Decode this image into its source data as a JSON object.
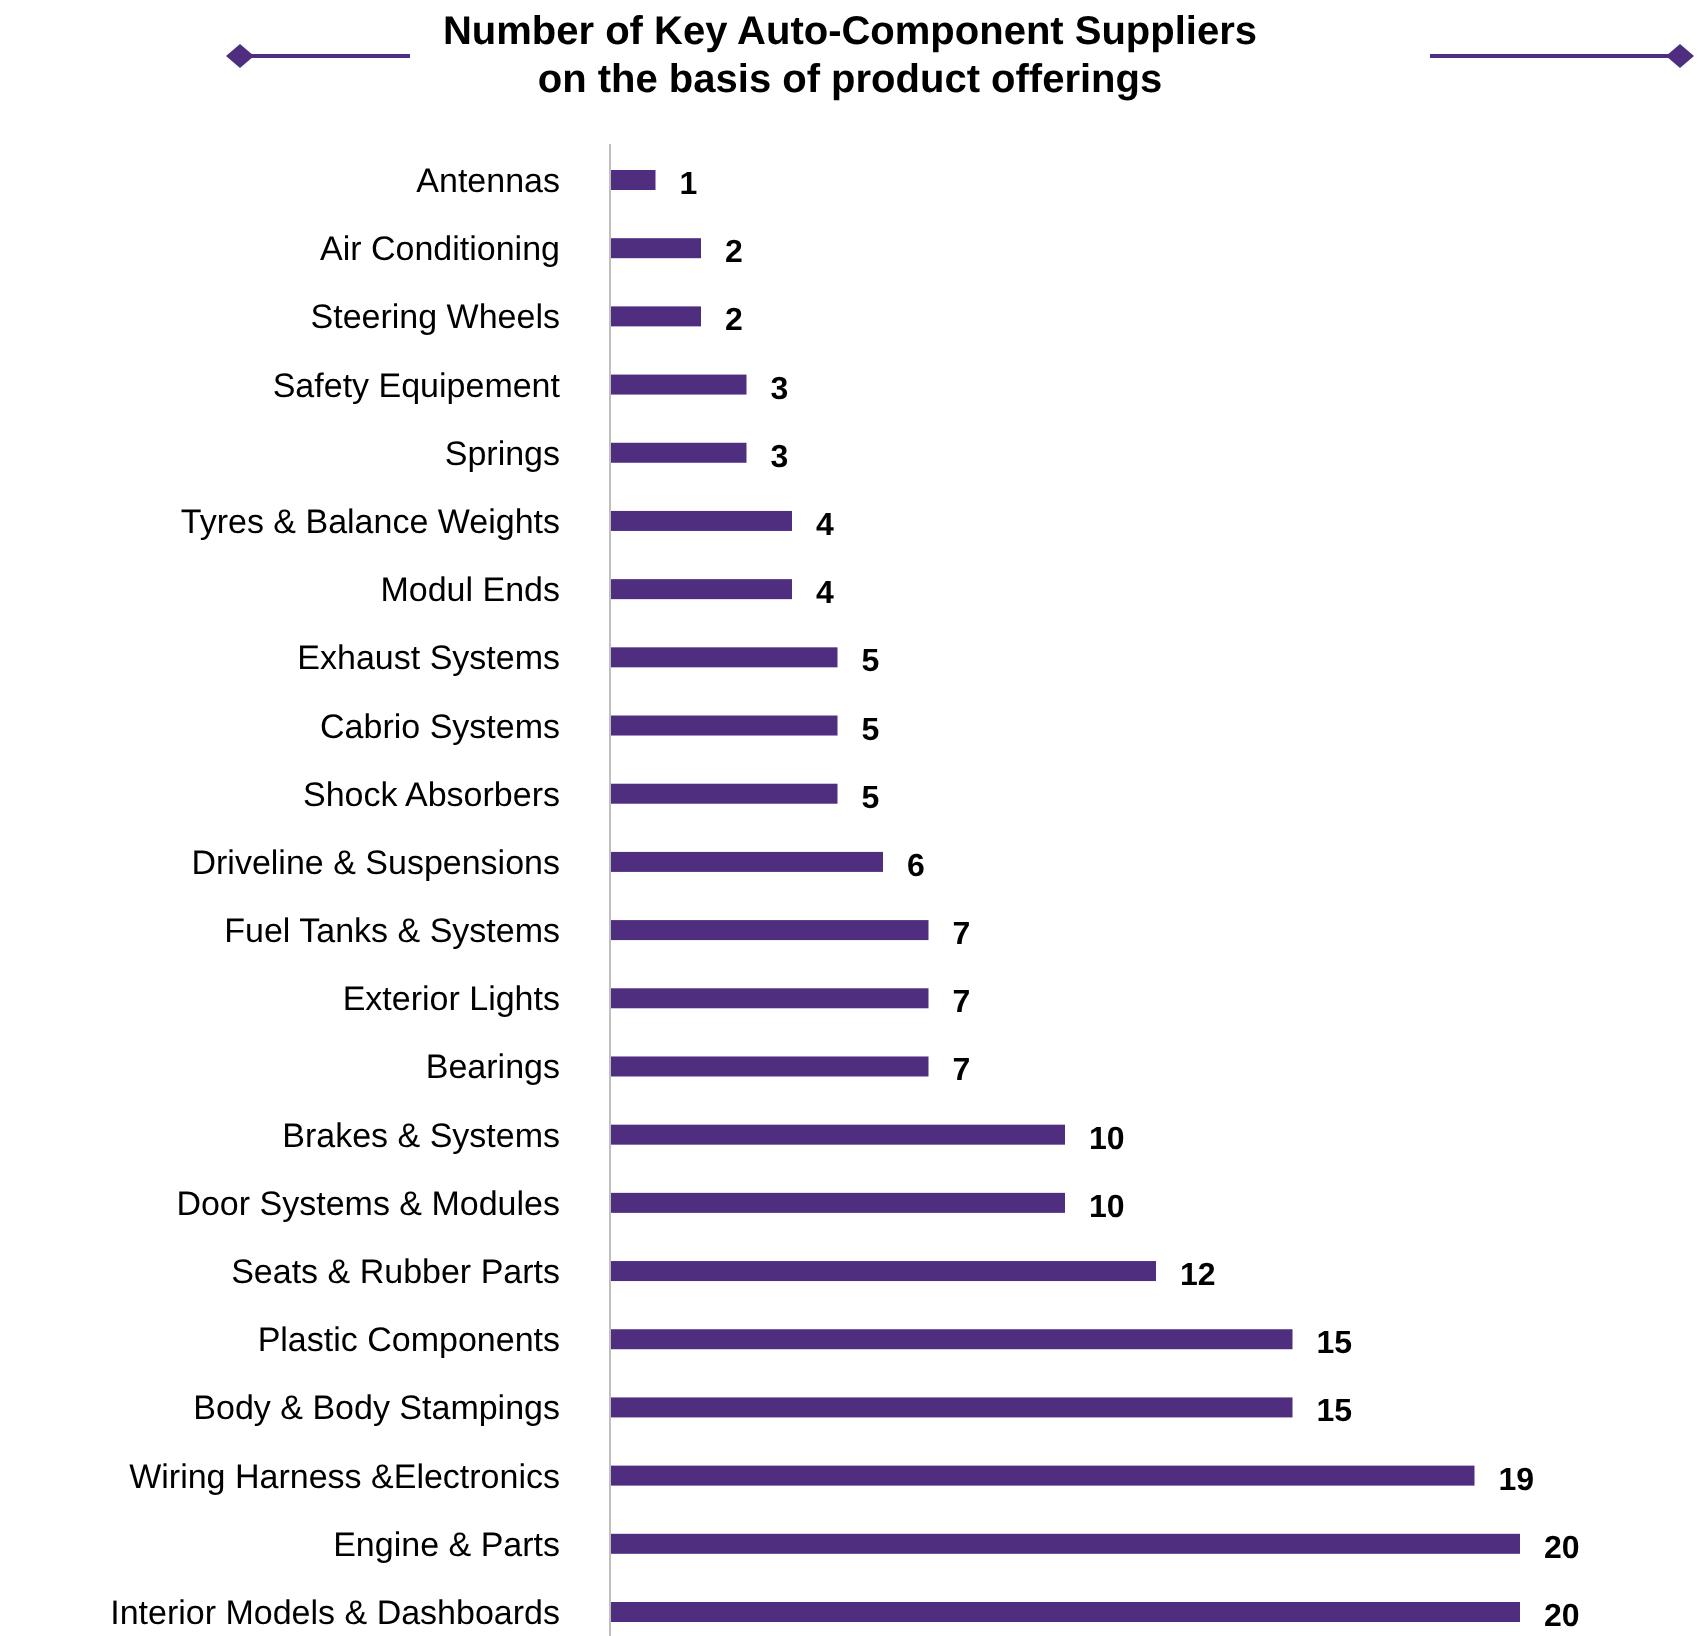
{
  "chart_data": {
    "type": "bar",
    "orientation": "horizontal",
    "title": "Number of Key Auto-Component Suppliers\non the basis of product offerings",
    "categories": [
      "Antennas",
      "Air Conditioning",
      "Steering Wheels",
      "Safety Equipement",
      "Springs",
      "Tyres & Balance Weights",
      "Modul Ends",
      "Exhaust Systems",
      "Cabrio Systems",
      "Shock Absorbers",
      "Driveline & Suspensions",
      "Fuel Tanks & Systems",
      "Exterior Lights",
      "Bearings",
      "Brakes & Systems",
      "Door Systems & Modules",
      "Seats & Rubber Parts",
      "Plastic Components",
      "Body & Body Stampings",
      "Wiring Harness &Electronics",
      "Engine & Parts",
      "Interior Models & Dashboards"
    ],
    "values": [
      1,
      2,
      2,
      3,
      3,
      4,
      4,
      5,
      5,
      5,
      6,
      7,
      7,
      7,
      10,
      10,
      12,
      15,
      15,
      19,
      20,
      20
    ],
    "color": "#4f2d7f",
    "data_labels": true
  }
}
